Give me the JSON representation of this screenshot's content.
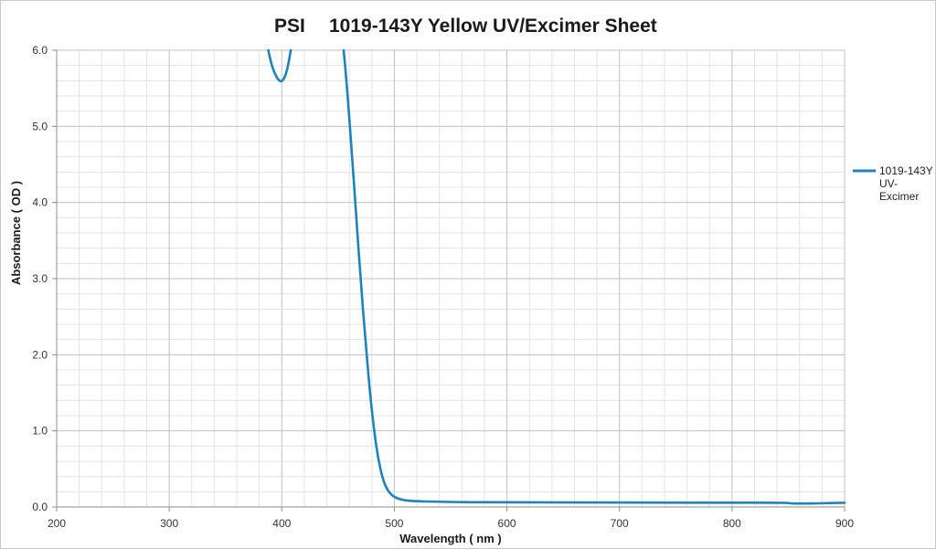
{
  "chart_data": {
    "type": "line",
    "title_prefix": "PSI",
    "title": "1019-143Y Yellow UV/Excimer Sheet",
    "xlabel": "Wavelength ( nm )",
    "ylabel": "Absorbance ( OD )",
    "xlim": [
      200,
      900
    ],
    "ylim": [
      0,
      6
    ],
    "x_ticks": [
      "200",
      "300",
      "400",
      "500",
      "600",
      "700",
      "800",
      "900"
    ],
    "y_ticks": [
      "0.0",
      "1.0",
      "2.0",
      "3.0",
      "4.0",
      "5.0",
      "6.0"
    ],
    "grid": true,
    "legend_position": "right",
    "colors": {
      "series": "#1f82c0",
      "major_grid": "#c0c0c0",
      "minor_grid": "#e3e3e3",
      "axis": "#8c8c8c"
    },
    "series": [
      {
        "name": "1019-143Y UV-Excimer",
        "name_lines": [
          "1019-143Y",
          "UV-",
          "Excimer"
        ],
        "segments": [
          [
            [
              388,
              6.0
            ],
            [
              391,
              5.8
            ],
            [
              395,
              5.65
            ],
            [
              399,
              5.58
            ],
            [
              402,
              5.62
            ],
            [
              405,
              5.75
            ],
            [
              408,
              6.0
            ]
          ],
          [
            [
              455,
              6.0
            ],
            [
              458,
              5.5
            ],
            [
              462,
              4.7
            ],
            [
              466,
              3.85
            ],
            [
              470,
              3.0
            ],
            [
              474,
              2.25
            ],
            [
              478,
              1.55
            ],
            [
              482,
              1.0
            ],
            [
              486,
              0.6
            ],
            [
              490,
              0.35
            ],
            [
              494,
              0.22
            ],
            [
              498,
              0.15
            ],
            [
              503,
              0.11
            ],
            [
              510,
              0.085
            ],
            [
              520,
              0.075
            ],
            [
              540,
              0.068
            ],
            [
              560,
              0.064
            ],
            [
              600,
              0.062
            ],
            [
              650,
              0.06
            ],
            [
              700,
              0.058
            ],
            [
              750,
              0.057
            ],
            [
              800,
              0.056
            ],
            [
              850,
              0.056
            ],
            [
              852,
              0.045
            ],
            [
              870,
              0.046
            ],
            [
              885,
              0.05
            ],
            [
              900,
              0.055
            ]
          ]
        ]
      }
    ]
  }
}
